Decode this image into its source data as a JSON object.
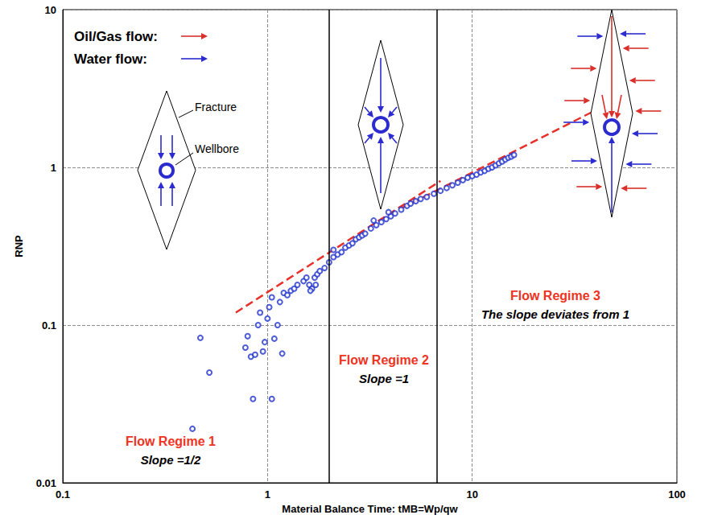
{
  "chart_data": {
    "type": "scatter",
    "xlabel": "Material Balance Time: tMB=Wp/qw",
    "ylabel": "RNP",
    "log": true,
    "grid": true,
    "xlim": [
      0.1,
      100
    ],
    "ylim": [
      0.01,
      10
    ],
    "xticks": [
      0.1,
      1,
      10,
      100
    ],
    "yticks": [
      0.01,
      0.1,
      1,
      10
    ],
    "series": [
      {
        "type": "scatter",
        "marker": "open circle",
        "color": "#2233cc",
        "x": [
          0.47,
          0.52,
          0.43,
          0.78,
          0.8,
          0.83,
          0.85,
          0.87,
          0.9,
          0.92,
          0.95,
          0.97,
          1.0,
          1.02,
          1.05,
          1.05,
          1.08,
          1.12,
          1.15,
          1.2,
          1.18,
          1.25,
          1.3,
          1.35,
          1.4,
          1.5,
          1.55,
          1.6,
          1.65,
          1.7,
          1.75,
          1.8,
          1.9,
          2.0,
          2.1,
          2.2,
          2.3,
          2.4,
          2.5,
          2.6,
          2.7,
          2.8,
          2.9,
          3.0,
          3.2,
          3.4,
          3.6,
          3.8,
          4.0,
          4.2,
          4.5,
          4.8,
          5.0,
          5.3,
          5.6,
          6.0,
          6.5,
          7.0,
          7.5,
          8.0,
          8.5,
          9.0,
          9.5,
          10.0,
          10.5,
          11.0,
          11.5,
          12.0,
          12.5,
          13.0,
          13.5,
          14.0,
          14.5,
          15.0,
          15.5,
          16.0,
          3.3,
          3.9,
          2.1,
          1.62,
          1.72
        ],
        "values": [
          0.083,
          0.05,
          0.022,
          0.072,
          0.085,
          0.063,
          0.034,
          0.065,
          0.1,
          0.12,
          0.068,
          0.078,
          0.11,
          0.13,
          0.15,
          0.034,
          0.082,
          0.1,
          0.14,
          0.16,
          0.066,
          0.155,
          0.165,
          0.17,
          0.18,
          0.19,
          0.2,
          0.18,
          0.17,
          0.2,
          0.21,
          0.22,
          0.23,
          0.25,
          0.27,
          0.28,
          0.29,
          0.31,
          0.32,
          0.33,
          0.35,
          0.36,
          0.37,
          0.38,
          0.41,
          0.43,
          0.45,
          0.47,
          0.49,
          0.51,
          0.54,
          0.57,
          0.59,
          0.61,
          0.63,
          0.65,
          0.68,
          0.71,
          0.74,
          0.77,
          0.8,
          0.83,
          0.86,
          0.88,
          0.9,
          0.93,
          0.95,
          0.98,
          1.0,
          1.03,
          1.06,
          1.09,
          1.12,
          1.15,
          1.17,
          1.2,
          0.46,
          0.52,
          0.3,
          0.165,
          0.18
        ]
      },
      {
        "type": "line",
        "line_style": "dashed",
        "color": "#e8302a",
        "x": [
          0.7,
          7
        ],
        "values": [
          0.12,
          0.82
        ]
      },
      {
        "type": "line",
        "line_style": "dashed",
        "color": "#e8302a",
        "x": [
          4.5,
          40
        ],
        "values": [
          0.55,
          2.3
        ]
      }
    ],
    "regime_boundaries": [
      2,
      6.7
    ],
    "flow_key": [
      {
        "label": "Oil/Gas flow:",
        "color": "#d9302c"
      },
      {
        "label": "Water flow:",
        "color": "#2b2bd0"
      }
    ],
    "diagram_labels": {
      "fracture": "Fracture",
      "wellbore": "Wellbore"
    },
    "regimes": [
      {
        "title": "Flow Regime 1",
        "text": "Slope =1/2"
      },
      {
        "title": "Flow Regime 2",
        "text": "Slope =1"
      },
      {
        "title": "Flow Regime 3",
        "text": "The slope deviates from 1"
      }
    ]
  }
}
